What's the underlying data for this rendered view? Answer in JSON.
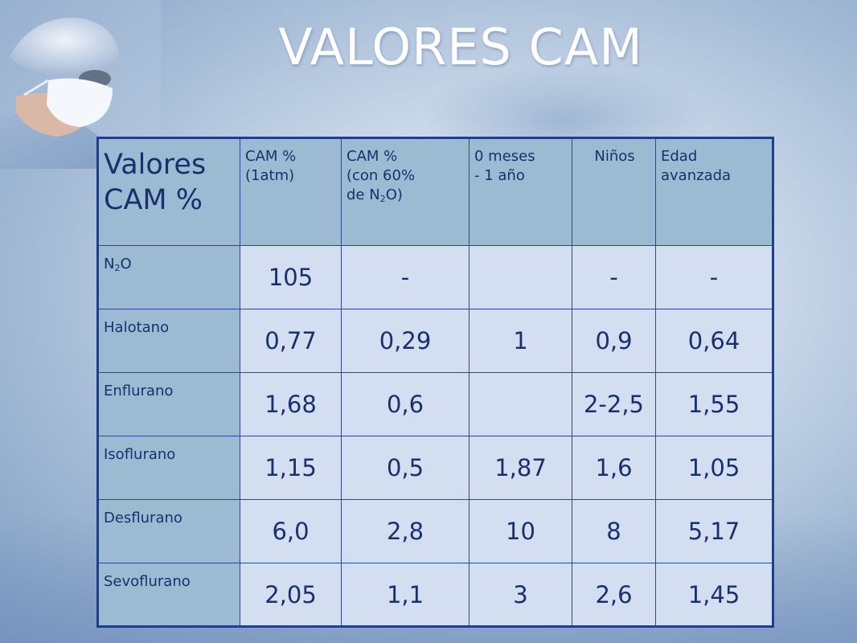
{
  "title": "VALORES CAM",
  "table": {
    "corner": {
      "line1": "Valores",
      "line2": "CAM %"
    },
    "columns": [
      {
        "id": "cam_1atm",
        "lines": [
          "CAM %",
          "(1atm)"
        ]
      },
      {
        "id": "cam_n2o",
        "lines": [
          "CAM %",
          "(con 60%",
          "de N",
          "2",
          "O)"
        ]
      },
      {
        "id": "infant",
        "lines": [
          "0 meses",
          "- 1 año"
        ]
      },
      {
        "id": "children",
        "lines": [
          "Niños"
        ]
      },
      {
        "id": "elderly",
        "lines": [
          "Edad",
          "avanzada"
        ]
      }
    ],
    "rows": [
      {
        "agent": "N2O",
        "agent_main": "N",
        "agent_sub": "2",
        "agent_tail": "O",
        "values": [
          "105",
          "-",
          "",
          "-",
          "-"
        ]
      },
      {
        "agent": "Halotano",
        "values": [
          "0,77",
          "0,29",
          "1",
          "0,9",
          "0,64"
        ]
      },
      {
        "agent": "Enflurano",
        "values": [
          "1,68",
          "0,6",
          "",
          "2-2,5",
          "1,55"
        ]
      },
      {
        "agent": "Isoflurano",
        "values": [
          "1,15",
          "0,5",
          "1,87",
          "1,6",
          "1,05"
        ]
      },
      {
        "agent": "Desflurano",
        "values": [
          "6,0",
          "2,8",
          "10",
          "8",
          "5,17"
        ]
      },
      {
        "agent": "Sevoflurano",
        "values": [
          "2,05",
          "1,1",
          "3",
          "2,6",
          "1,45"
        ]
      }
    ]
  }
}
